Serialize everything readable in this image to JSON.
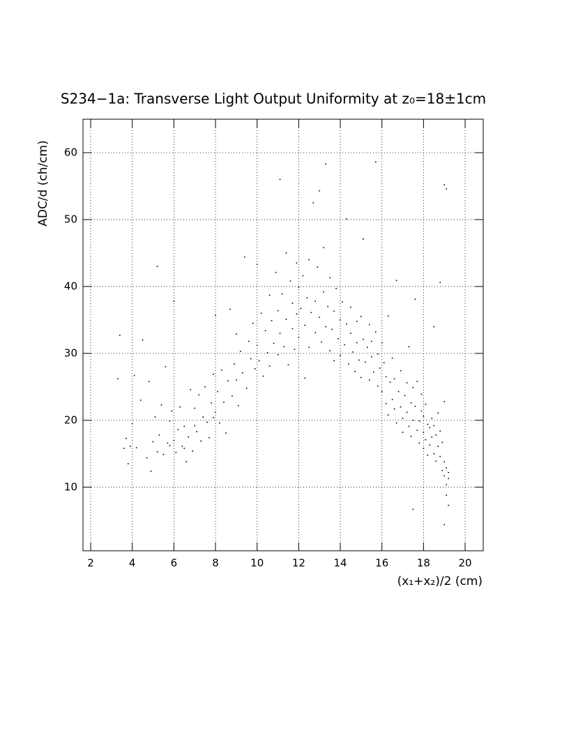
{
  "chart_data": {
    "type": "scatter",
    "title": "S234−1a: Transverse Light Output Uniformity at z₀=18±1cm",
    "x_label": "(x₁+x₂)/2 (cm)",
    "y_label": "ADC/d (ch/cm)",
    "xlim": [
      1.63,
      20.87
    ],
    "ylim": [
      0.5,
      65
    ],
    "xticks": [
      2,
      4,
      6,
      8,
      10,
      12,
      14,
      16,
      18,
      20
    ],
    "yticks": [
      10,
      20,
      30,
      40,
      50,
      60
    ],
    "grid": true,
    "color": "#000000",
    "x": [
      3.3,
      3.4,
      3.6,
      3.7,
      3.8,
      3.9,
      4.0,
      4.1,
      4.2,
      4.4,
      4.5,
      4.7,
      4.8,
      4.9,
      5.0,
      5.1,
      5.2,
      5.2,
      5.3,
      5.4,
      5.5,
      5.6,
      5.7,
      5.8,
      5.9,
      6.0,
      6.0,
      6.1,
      6.2,
      6.3,
      6.4,
      6.5,
      6.6,
      6.7,
      6.8,
      6.9,
      7.0,
      7.0,
      5.8,
      6.5,
      7.1,
      7.2,
      7.3,
      7.4,
      7.5,
      7.6,
      7.7,
      7.8,
      7.9,
      8.0,
      8.0,
      8.1,
      8.2,
      8.3,
      8.4,
      8.5,
      8.6,
      8.7,
      8.8,
      8.9,
      9.0,
      9.0,
      9.1,
      9.2,
      9.3,
      9.4,
      9.5,
      9.6,
      9.7,
      7.9,
      9.8,
      9.9,
      10.0,
      10.0,
      10.1,
      10.2,
      10.3,
      10.4,
      10.5,
      10.6,
      10.6,
      10.7,
      10.8,
      10.9,
      11.0,
      11.0,
      11.1,
      11.1,
      11.2,
      11.3,
      11.4,
      11.4,
      11.5,
      11.6,
      11.7,
      11.7,
      11.8,
      11.9,
      11.9,
      12.0,
      12.0,
      12.1,
      12.2,
      12.3,
      12.3,
      12.4,
      12.5,
      12.5,
      12.6,
      12.7,
      12.8,
      12.8,
      12.9,
      13.0,
      13.0,
      13.1,
      13.2,
      13.2,
      13.3,
      13.3,
      13.4,
      13.5,
      13.5,
      13.6,
      13.7,
      13.7,
      13.8,
      13.9,
      14.0,
      14.0,
      14.1,
      14.2,
      14.3,
      14.3,
      14.4,
      14.5,
      14.5,
      14.6,
      14.7,
      14.8,
      14.8,
      14.9,
      15.0,
      15.0,
      15.1,
      15.1,
      15.2,
      15.3,
      15.4,
      15.4,
      15.5,
      15.5,
      15.6,
      15.7,
      15.7,
      15.8,
      15.8,
      15.9,
      16.0,
      16.0,
      16.1,
      16.2,
      16.2,
      16.3,
      16.3,
      16.4,
      16.5,
      16.5,
      16.6,
      16.6,
      16.7,
      16.7,
      16.8,
      16.9,
      16.9,
      17.0,
      17.0,
      17.1,
      17.2,
      17.2,
      17.3,
      17.3,
      17.4,
      17.4,
      17.5,
      17.5,
      17.6,
      17.6,
      17.7,
      17.7,
      17.8,
      17.8,
      17.9,
      17.9,
      18.0,
      18.0,
      18.0,
      18.1,
      18.1,
      18.2,
      18.2,
      18.3,
      18.3,
      18.4,
      18.4,
      18.5,
      18.5,
      18.6,
      18.6,
      18.7,
      18.7,
      18.8,
      18.8,
      18.9,
      18.9,
      19.0,
      19.0,
      19.0,
      19.1,
      19.1,
      19.1,
      19.2,
      19.2,
      19.0,
      19.0,
      19.1,
      18.5,
      18.8,
      17.5,
      19.2
    ],
    "values": [
      26.2,
      32.7,
      15.8,
      17.3,
      13.5,
      16.1,
      19.5,
      26.7,
      15.9,
      23.0,
      32.0,
      14.4,
      25.8,
      12.4,
      16.8,
      20.5,
      43.0,
      15.3,
      17.8,
      22.3,
      14.9,
      28.0,
      16.6,
      19.9,
      21.4,
      17.0,
      37.8,
      15.2,
      18.6,
      22.0,
      16.1,
      19.1,
      13.8,
      17.5,
      24.6,
      15.4,
      19.2,
      21.8,
      16.2,
      15.8,
      18.3,
      23.8,
      16.9,
      20.5,
      25.0,
      19.7,
      17.4,
      22.6,
      26.9,
      21.2,
      35.7,
      24.3,
      19.6,
      27.5,
      22.7,
      18.1,
      25.9,
      36.6,
      23.6,
      28.4,
      26.0,
      32.9,
      22.2,
      30.3,
      27.1,
      44.4,
      24.8,
      31.8,
      29.2,
      20.4,
      34.5,
      27.7,
      31.2,
      43.3,
      28.9,
      36.0,
      26.6,
      33.4,
      30.1,
      38.7,
      28.1,
      34.9,
      31.5,
      42.1,
      29.8,
      36.4,
      33.0,
      56.0,
      38.9,
      31.0,
      45.0,
      35.1,
      28.3,
      40.8,
      33.7,
      37.5,
      30.6,
      43.5,
      35.9,
      39.9,
      32.4,
      36.7,
      41.6,
      34.2,
      26.3,
      38.3,
      44.0,
      30.9,
      36.1,
      52.5,
      37.8,
      33.1,
      42.9,
      35.4,
      54.3,
      31.7,
      39.2,
      45.8,
      34.0,
      58.3,
      37.0,
      30.4,
      41.3,
      33.6,
      36.3,
      28.9,
      39.7,
      32.2,
      35.0,
      29.7,
      37.7,
      31.3,
      34.4,
      50.1,
      28.4,
      33.0,
      36.9,
      30.2,
      27.3,
      34.8,
      31.6,
      29.0,
      35.5,
      26.4,
      32.1,
      47.1,
      28.7,
      30.9,
      34.3,
      26.0,
      29.5,
      31.8,
      27.2,
      33.2,
      58.6,
      25.1,
      29.9,
      27.8,
      31.6,
      24.3,
      28.6,
      22.5,
      26.5,
      35.6,
      20.8,
      25.7,
      23.1,
      29.3,
      21.7,
      26.2,
      19.6,
      40.9,
      24.3,
      22.0,
      27.4,
      20.3,
      18.2,
      23.7,
      25.6,
      21.2,
      19.1,
      31.0,
      22.6,
      17.6,
      24.9,
      20.0,
      22.1,
      38.1,
      18.5,
      25.8,
      19.9,
      16.6,
      21.4,
      23.9,
      18.2,
      15.8,
      20.6,
      17.1,
      22.4,
      19.4,
      14.8,
      18.9,
      16.3,
      20.3,
      17.5,
      15.0,
      19.2,
      13.9,
      17.8,
      16.1,
      21.1,
      14.6,
      18.4,
      12.5,
      16.7,
      11.7,
      13.8,
      22.8,
      10.4,
      12.9,
      8.8,
      11.3,
      7.3,
      4.4,
      55.2,
      54.6,
      34.0,
      40.6,
      6.7,
      12.2
    ]
  }
}
